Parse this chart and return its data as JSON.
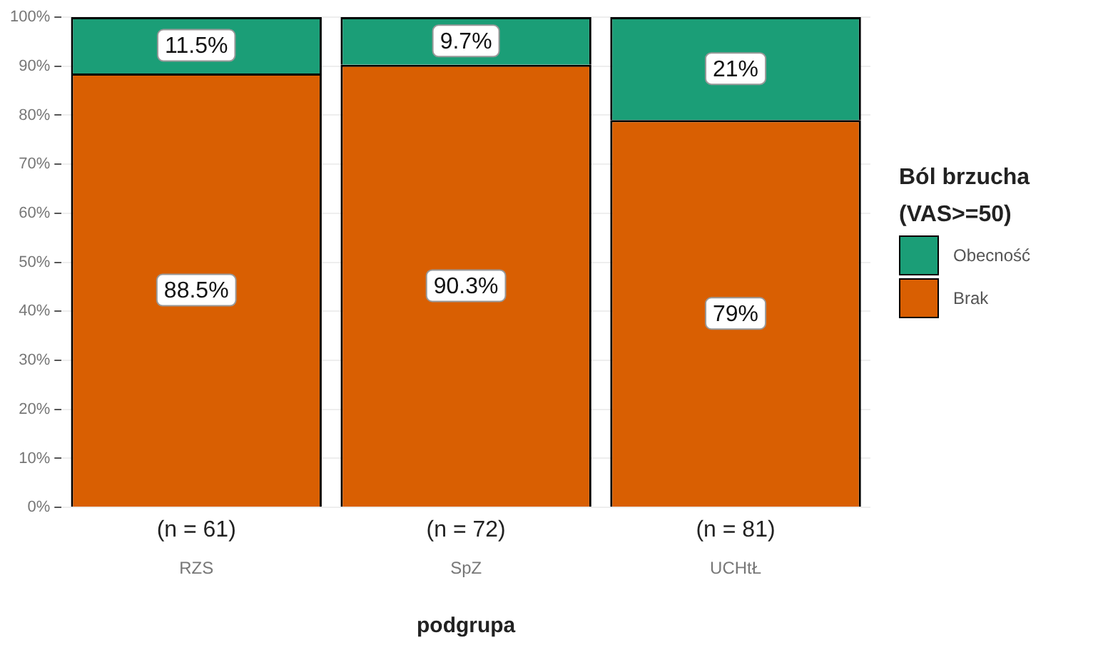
{
  "chart_data": {
    "type": "bar",
    "stacked": true,
    "categories": [
      "RZS",
      "SpZ",
      "UCHtŁ"
    ],
    "series": [
      {
        "name": "Brak",
        "color": "#d95f02",
        "values": [
          88.5,
          90.3,
          79
        ],
        "value_labels": [
          "88.5%",
          "90.3%",
          "79%"
        ]
      },
      {
        "name": "Obecność",
        "color": "#1b9e77",
        "values": [
          11.5,
          9.7,
          21
        ],
        "value_labels": [
          "11.5%",
          "9.7%",
          "21%"
        ]
      }
    ],
    "xlabel": "podgrupa",
    "legend_title": "Ból brzucha (VAS>=50)",
    "legend": "right",
    "grid": "y",
    "ylim": [
      0,
      100
    ],
    "yticks": [
      {
        "value": 0,
        "label": "0%"
      },
      {
        "value": 10,
        "label": "10%"
      },
      {
        "value": 20,
        "label": "20%"
      },
      {
        "value": 30,
        "label": "30%"
      },
      {
        "value": 40,
        "label": "40%"
      },
      {
        "value": 50,
        "label": "50%"
      },
      {
        "value": 60,
        "label": "60%"
      },
      {
        "value": 70,
        "label": "70%"
      },
      {
        "value": 80,
        "label": "80%"
      },
      {
        "value": 90,
        "label": "90%"
      },
      {
        "value": 100,
        "label": "100%"
      }
    ],
    "annotations": [
      "(n = 61)",
      "(n = 72)",
      "(n = 81)"
    ]
  }
}
